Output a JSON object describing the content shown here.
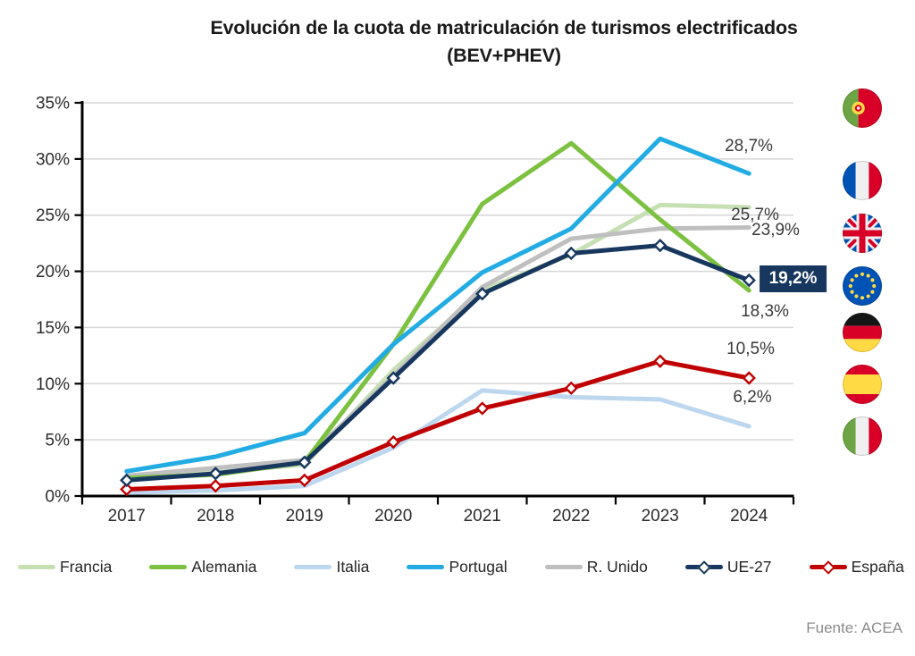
{
  "title": {
    "line1": "Evolución de la cuota de matriculación de turismos electrificados",
    "line2": "(BEV+PHEV)"
  },
  "source": "Fuente: ACEA",
  "chart_data": {
    "type": "line",
    "categories": [
      "2017",
      "2018",
      "2019",
      "2020",
      "2021",
      "2022",
      "2023",
      "2024"
    ],
    "ylim": [
      0,
      35
    ],
    "y_ticks": [
      "0%",
      "5%",
      "10%",
      "15%",
      "20%",
      "25%",
      "30%",
      "35%"
    ],
    "grid": true,
    "legend_position": "bottom",
    "series": [
      {
        "name": "Francia",
        "color": "#C6E0B4",
        "marker": false,
        "values": [
          1.7,
          2.1,
          2.8,
          11.2,
          18.3,
          21.5,
          25.9,
          25.7
        ],
        "end_label": "25,7%",
        "end_label_boxed": false
      },
      {
        "name": "Alemania",
        "color": "#7DC141",
        "marker": false,
        "values": [
          1.6,
          1.9,
          3.0,
          13.5,
          26.0,
          31.4,
          24.6,
          18.3
        ],
        "end_label": "18,3%",
        "end_label_boxed": false
      },
      {
        "name": "Italia",
        "color": "#BDD7EE",
        "marker": false,
        "values": [
          0.3,
          0.5,
          0.9,
          4.3,
          9.4,
          8.8,
          8.6,
          6.2
        ],
        "end_label": "6,2%",
        "end_label_boxed": false
      },
      {
        "name": "Portugal",
        "color": "#22ACE3",
        "marker": false,
        "values": [
          2.2,
          3.5,
          5.6,
          13.5,
          19.9,
          23.8,
          31.8,
          28.7
        ],
        "end_label": "28,7%",
        "end_label_boxed": false
      },
      {
        "name": "R. Unido",
        "color": "#BFBFBF",
        "marker": false,
        "values": [
          1.8,
          2.5,
          3.2,
          10.7,
          18.6,
          22.9,
          23.8,
          23.9
        ],
        "end_label": "23,9%",
        "end_label_boxed": false
      },
      {
        "name": "UE-27",
        "color": "#17375E",
        "marker": true,
        "values": [
          1.4,
          2.0,
          3.0,
          10.5,
          18.0,
          21.6,
          22.3,
          19.2
        ],
        "end_label": "19,2%",
        "end_label_boxed": true
      },
      {
        "name": "España",
        "color": "#C00000",
        "marker": true,
        "values": [
          0.6,
          0.9,
          1.4,
          4.8,
          7.8,
          9.6,
          12.0,
          10.5
        ],
        "end_label": "10,5%",
        "end_label_boxed": false
      }
    ]
  },
  "flags": [
    {
      "country": "Portugal"
    },
    {
      "country": "Francia"
    },
    {
      "country": "Reino Unido"
    },
    {
      "country": "Unión Europea"
    },
    {
      "country": "Alemania"
    },
    {
      "country": "España"
    },
    {
      "country": "Italia"
    }
  ]
}
